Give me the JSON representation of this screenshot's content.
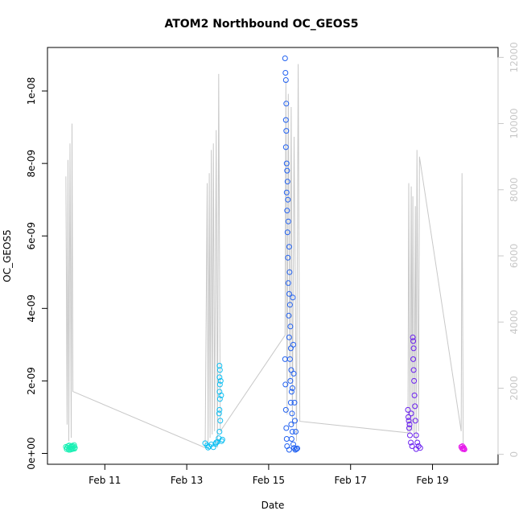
{
  "chart_data": {
    "type": "scatter",
    "title": "ATOM2 Northbound OC_GEOS5",
    "xlabel": "Date",
    "ylabel": "OC_GEOS5",
    "x_unit": "days (Feb)",
    "xlim": [
      9.6,
      20.6
    ],
    "x_ticks": [
      {
        "value": 11,
        "label": "Feb 11"
      },
      {
        "value": 13,
        "label": "Feb 13"
      },
      {
        "value": 15,
        "label": "Feb 15"
      },
      {
        "value": 17,
        "label": "Feb 17"
      },
      {
        "value": 19,
        "label": "Feb 19"
      }
    ],
    "ylim": [
      -3e-10,
      1.12e-08
    ],
    "y_ticks": [
      {
        "value": 0,
        "label": "0e+00"
      },
      {
        "value": 2e-09,
        "label": "2e-09"
      },
      {
        "value": 4e-09,
        "label": "4e-09"
      },
      {
        "value": 6e-09,
        "label": "6e-09"
      },
      {
        "value": 8e-09,
        "label": "8e-09"
      },
      {
        "value": 1e-08,
        "label": "1e-08"
      }
    ],
    "y2lim": [
      -300,
      12300
    ],
    "y2_ticks": [
      {
        "value": 0,
        "label": "0"
      },
      {
        "value": 2000,
        "label": "2000"
      },
      {
        "value": 4000,
        "label": "4000"
      },
      {
        "value": 6000,
        "label": "6000"
      },
      {
        "value": 8000,
        "label": "8000"
      },
      {
        "value": 10000,
        "label": "10000"
      },
      {
        "value": 12000,
        "label": "12000"
      }
    ],
    "colors": {
      "altitude_line": "#c8c8c8",
      "flight1": "#19f0b4",
      "flight2": "#10bff2",
      "flight3": "#2060f0",
      "flight4": "#6a1ff0",
      "flight5": "#e619ea",
      "frame": "#000000",
      "right_axis": "#c8c8c8"
    },
    "series": [
      {
        "name": "flight1",
        "color_key": "flight1",
        "points": [
          [
            10.05,
            1.8e-10
          ],
          [
            10.07,
            1.2e-10
          ],
          [
            10.1,
            2e-10
          ],
          [
            10.12,
            1e-10
          ],
          [
            10.14,
            1.5e-10
          ],
          [
            10.16,
            1.7e-10
          ],
          [
            10.18,
            1.1e-10
          ],
          [
            10.2,
            2.1e-10
          ],
          [
            10.22,
            1.4e-10
          ],
          [
            10.24,
            1.9e-10
          ],
          [
            10.26,
            1.3e-10
          ],
          [
            10.08,
            1.6e-10
          ],
          [
            10.13,
            2.2e-10
          ],
          [
            10.19,
            1.8e-10
          ],
          [
            10.21,
            1.2e-10
          ],
          [
            10.25,
            2.3e-10
          ],
          [
            10.27,
            1.6e-10
          ],
          [
            10.15,
            1e-10
          ]
        ]
      },
      {
        "name": "flight2",
        "color_key": "flight2",
        "points": [
          [
            13.45,
            2.8e-10
          ],
          [
            13.5,
            2.2e-10
          ],
          [
            13.55,
            1.9e-10
          ],
          [
            13.6,
            2.5e-10
          ],
          [
            13.65,
            1.7e-10
          ],
          [
            13.7,
            2.6e-10
          ],
          [
            13.75,
            3.2e-10
          ],
          [
            13.78,
            4.2e-10
          ],
          [
            13.8,
            6e-10
          ],
          [
            13.82,
            9e-10
          ],
          [
            13.8,
            1.2e-09
          ],
          [
            13.81,
            1.5e-09
          ],
          [
            13.8,
            1.7e-09
          ],
          [
            13.81,
            1.9e-09
          ],
          [
            13.8,
            2.1e-09
          ],
          [
            13.81,
            2.3e-09
          ],
          [
            13.8,
            2.42e-09
          ],
          [
            13.83,
            2e-09
          ],
          [
            13.84,
            1.6e-09
          ],
          [
            13.79,
            1.1e-09
          ],
          [
            13.85,
            3.4e-10
          ],
          [
            13.87,
            3.8e-10
          ],
          [
            13.72,
            3e-10
          ],
          [
            13.52,
            1.6e-10
          ]
        ]
      },
      {
        "name": "flight3",
        "color_key": "flight3",
        "points": [
          [
            15.4,
            1.09e-08
          ],
          [
            15.41,
            1.05e-08
          ],
          [
            15.42,
            1.03e-08
          ],
          [
            15.43,
            9.65e-09
          ],
          [
            15.42,
            9.2e-09
          ],
          [
            15.43,
            8.9e-09
          ],
          [
            15.42,
            8.45e-09
          ],
          [
            15.44,
            8e-09
          ],
          [
            15.45,
            7.8e-09
          ],
          [
            15.46,
            7.5e-09
          ],
          [
            15.44,
            7.2e-09
          ],
          [
            15.47,
            7e-09
          ],
          [
            15.45,
            6.7e-09
          ],
          [
            15.48,
            6.4e-09
          ],
          [
            15.46,
            6.1e-09
          ],
          [
            15.5,
            5.7e-09
          ],
          [
            15.47,
            5.4e-09
          ],
          [
            15.51,
            5e-09
          ],
          [
            15.48,
            4.7e-09
          ],
          [
            15.5,
            4.4e-09
          ],
          [
            15.52,
            4.1e-09
          ],
          [
            15.49,
            3.8e-09
          ],
          [
            15.53,
            3.5e-09
          ],
          [
            15.5,
            3.2e-09
          ],
          [
            15.54,
            2.9e-09
          ],
          [
            15.52,
            2.6e-09
          ],
          [
            15.55,
            2.3e-09
          ],
          [
            15.53,
            2e-09
          ],
          [
            15.56,
            1.7e-09
          ],
          [
            15.54,
            1.4e-09
          ],
          [
            15.57,
            1.1e-09
          ],
          [
            15.55,
            8e-10
          ],
          [
            15.58,
            6e-10
          ],
          [
            15.56,
            4e-10
          ],
          [
            15.6,
            2.5e-10
          ],
          [
            15.62,
            1.5e-10
          ],
          [
            15.65,
            1e-10
          ],
          [
            15.68,
            1.2e-10
          ],
          [
            15.7,
            1.4e-10
          ],
          [
            15.4,
            2.6e-09
          ],
          [
            15.41,
            1.9e-09
          ],
          [
            15.42,
            1.2e-09
          ],
          [
            15.43,
            7e-10
          ],
          [
            15.44,
            4e-10
          ],
          [
            15.45,
            2e-10
          ],
          [
            15.5,
            1e-10
          ],
          [
            15.58,
            1.8e-09
          ],
          [
            15.6,
            3e-09
          ],
          [
            15.61,
            2.2e-09
          ],
          [
            15.63,
            1.4e-09
          ],
          [
            15.64,
            9e-10
          ],
          [
            15.66,
            6e-10
          ],
          [
            15.59,
            4.3e-09
          ]
        ]
      },
      {
        "name": "flight4",
        "color_key": "flight4",
        "points": [
          [
            18.4,
            1.2e-09
          ],
          [
            18.41,
            1e-09
          ],
          [
            18.42,
            9e-10
          ],
          [
            18.43,
            7e-10
          ],
          [
            18.45,
            5e-10
          ],
          [
            18.47,
            3e-10
          ],
          [
            18.5,
            2e-10
          ],
          [
            18.52,
            3.2e-09
          ],
          [
            18.53,
            3.1e-09
          ],
          [
            18.54,
            2.9e-09
          ],
          [
            18.53,
            2.6e-09
          ],
          [
            18.54,
            2.3e-09
          ],
          [
            18.55,
            2e-09
          ],
          [
            18.56,
            1.6e-09
          ],
          [
            18.57,
            1.3e-09
          ],
          [
            18.58,
            9e-10
          ],
          [
            18.6,
            5e-10
          ],
          [
            18.63,
            3e-10
          ],
          [
            18.66,
            2e-10
          ],
          [
            18.7,
            1.5e-10
          ],
          [
            18.48,
            1.1e-09
          ],
          [
            18.44,
            8e-10
          ],
          [
            18.6,
            1.2e-10
          ]
        ]
      },
      {
        "name": "flight5",
        "color_key": "flight5",
        "points": [
          [
            19.7,
            1.8e-10
          ],
          [
            19.72,
            1.4e-10
          ],
          [
            19.74,
            1.2e-10
          ],
          [
            19.76,
            1.6e-10
          ],
          [
            19.78,
            1.1e-10
          ],
          [
            19.73,
            2e-10
          ],
          [
            19.77,
            1.3e-10
          ]
        ]
      }
    ],
    "altitude_line": {
      "axis": "right",
      "points": [
        [
          10.05,
          8400
        ],
        [
          10.08,
          900
        ],
        [
          10.1,
          8900
        ],
        [
          10.12,
          400
        ],
        [
          10.15,
          9400
        ],
        [
          10.18,
          500
        ],
        [
          10.2,
          10000
        ],
        [
          10.22,
          1900
        ],
        [
          13.45,
          200
        ],
        [
          13.5,
          8200
        ],
        [
          13.52,
          350
        ],
        [
          13.55,
          8500
        ],
        [
          13.57,
          500
        ],
        [
          13.6,
          9200
        ],
        [
          13.62,
          600
        ],
        [
          13.65,
          9400
        ],
        [
          13.68,
          700
        ],
        [
          13.72,
          9800
        ],
        [
          13.75,
          200
        ],
        [
          13.78,
          11500
        ],
        [
          13.82,
          700
        ],
        [
          15.4,
          3600
        ],
        [
          15.42,
          11300
        ],
        [
          15.45,
          1200
        ],
        [
          15.48,
          10900
        ],
        [
          15.52,
          2200
        ],
        [
          15.55,
          10500
        ],
        [
          15.58,
          900
        ],
        [
          15.62,
          9600
        ],
        [
          15.68,
          400
        ],
        [
          15.72,
          11800
        ],
        [
          15.76,
          1000
        ],
        [
          18.4,
          650
        ],
        [
          18.42,
          8200
        ],
        [
          18.45,
          600
        ],
        [
          18.48,
          8100
        ],
        [
          18.5,
          700
        ],
        [
          18.52,
          7800
        ],
        [
          18.55,
          500
        ],
        [
          18.58,
          7500
        ],
        [
          18.6,
          400
        ],
        [
          18.62,
          9200
        ],
        [
          18.66,
          700
        ],
        [
          18.68,
          9000
        ],
        [
          19.7,
          700
        ],
        [
          19.72,
          8500
        ],
        [
          19.75,
          300
        ]
      ]
    }
  }
}
